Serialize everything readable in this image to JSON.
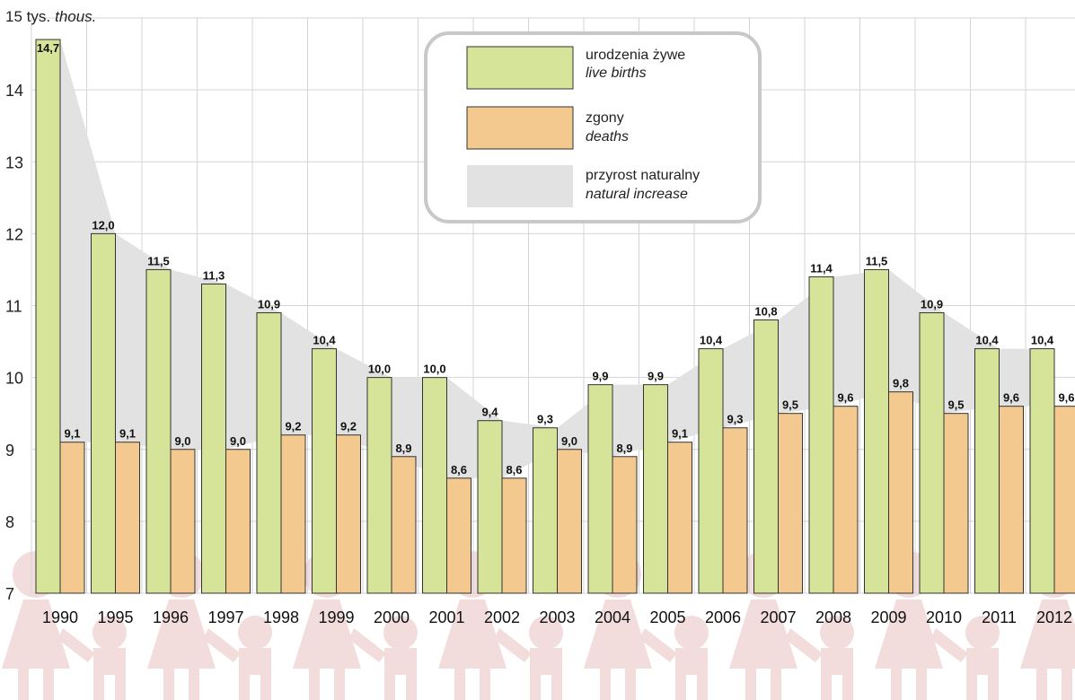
{
  "chart_data": {
    "type": "bar",
    "unit_label": "15 tys.",
    "unit_label_en": "thous.",
    "ylim": [
      7,
      15
    ],
    "yticks": [
      7,
      8,
      9,
      10,
      11,
      12,
      13,
      14
    ],
    "grid": true,
    "categories": [
      "1990",
      "1995",
      "1996",
      "1997",
      "1998",
      "1999",
      "2000",
      "2001",
      "2002",
      "2003",
      "2004",
      "2005",
      "2006",
      "2007",
      "2008",
      "2009",
      "2010",
      "2011",
      "2012"
    ],
    "series": [
      {
        "name": "urodzenia żywe",
        "name_en": "live births",
        "color": "#d6e49a",
        "values": [
          14.7,
          12.0,
          11.5,
          11.3,
          10.9,
          10.4,
          10.0,
          10.0,
          9.4,
          9.3,
          9.9,
          9.9,
          10.4,
          10.8,
          11.4,
          11.5,
          10.9,
          10.4,
          10.4
        ],
        "labels": [
          "14,7",
          "12,0",
          "11,5",
          "11,3",
          "10,9",
          "10,4",
          "10,0",
          "10,0",
          "9,4",
          "9,3",
          "9,9",
          "9,9",
          "10,4",
          "10,8",
          "11,4",
          "11,5",
          "10,9",
          "10,4",
          "10,4"
        ]
      },
      {
        "name": "zgony",
        "name_en": "deaths",
        "color": "#f3c98f",
        "values": [
          9.1,
          9.1,
          9.0,
          9.0,
          9.2,
          9.2,
          8.9,
          8.6,
          8.6,
          9.0,
          8.9,
          9.1,
          9.3,
          9.5,
          9.6,
          9.8,
          9.5,
          9.6,
          9.6
        ],
        "labels": [
          "9,1",
          "9,1",
          "9,0",
          "9,0",
          "9,2",
          "9,2",
          "8,9",
          "8,6",
          "8,6",
          "9,0",
          "8,9",
          "9,1",
          "9,3",
          "9,5",
          "9,6",
          "9,8",
          "9,5",
          "9,6",
          "9,6"
        ]
      }
    ],
    "natural_increase": {
      "name": "przyrost naturalny",
      "name_en": "natural increase",
      "color": "#e2e2e2"
    },
    "legend_position": "top-center",
    "colors": {
      "grid": "#d4d4d4",
      "bar_outline": "#333333",
      "decoration": "#f2dcdc"
    }
  }
}
